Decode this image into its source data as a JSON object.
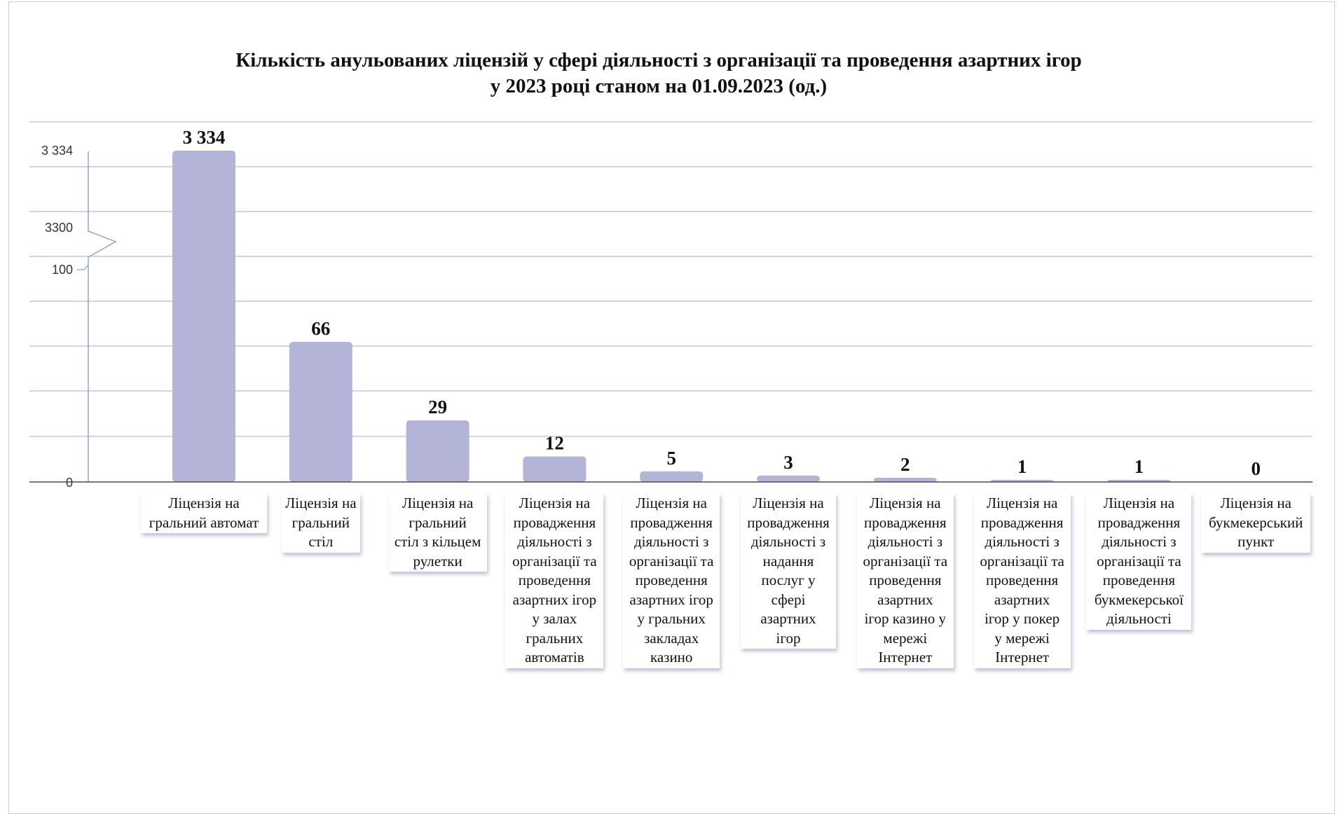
{
  "chart_data": {
    "type": "bar",
    "title_lines": [
      "Кількість анульованих ліцензій у сфері діяльності з організації та проведення азартних ігор",
      "у 2023 році станом на 01.09.2023 (од.)"
    ],
    "xlabel": "",
    "ylabel": "",
    "y_axis_break": true,
    "ytick_labels": [
      "3 334",
      "3300",
      "100",
      "0"
    ],
    "grid": true,
    "legend": "none",
    "categories": [
      [
        "Ліцензія на",
        "гральний автомат"
      ],
      [
        "Ліцензія на",
        "гральний",
        "стіл"
      ],
      [
        "Ліцензія на",
        "гральний",
        "стіл з кільцем",
        "рулетки"
      ],
      [
        "Ліцензія на",
        "провадження",
        "діяльності з",
        "організації та",
        "проведення",
        "азартних ігор",
        "у залах",
        "гральних",
        "автоматів"
      ],
      [
        "Ліцензія на",
        "провадження",
        "діяльності з",
        "організації та",
        "проведення",
        "азартних ігор",
        "у гральних",
        "закладах",
        "казино"
      ],
      [
        "Ліцензія на",
        "провадження",
        "діяльності з",
        "надання",
        "послуг у",
        "сфері",
        "азартних",
        "ігор"
      ],
      [
        "Ліцензія на",
        "провадження",
        "діяльності з",
        "організації та",
        "проведення",
        "азартних",
        "ігор казино у",
        "мережі",
        "Інтернет"
      ],
      [
        "Ліцензія на",
        "провадження",
        "діяльності з",
        "організації та",
        "проведення",
        "азартних",
        "ігор у покер",
        "у мережі",
        "Інтернет"
      ],
      [
        "Ліцензія на",
        "провадження",
        "діяльності з",
        "організації та",
        "проведення",
        "букмекерської",
        "діяльності"
      ],
      [
        "Ліцензія на",
        "букмекерський",
        "пункт"
      ]
    ],
    "values": [
      3334,
      66,
      29,
      12,
      5,
      3,
      2,
      1,
      1,
      0
    ],
    "value_labels": [
      "3 334",
      "66",
      "29",
      "12",
      "5",
      "3",
      "2",
      "1",
      "1",
      "0"
    ],
    "colors": {
      "bar": "#b3b4d7",
      "grid": "#b9badb",
      "axis_line": "#4a4a4a",
      "break_axis": "#8aa0c8",
      "text": "#111111"
    }
  }
}
